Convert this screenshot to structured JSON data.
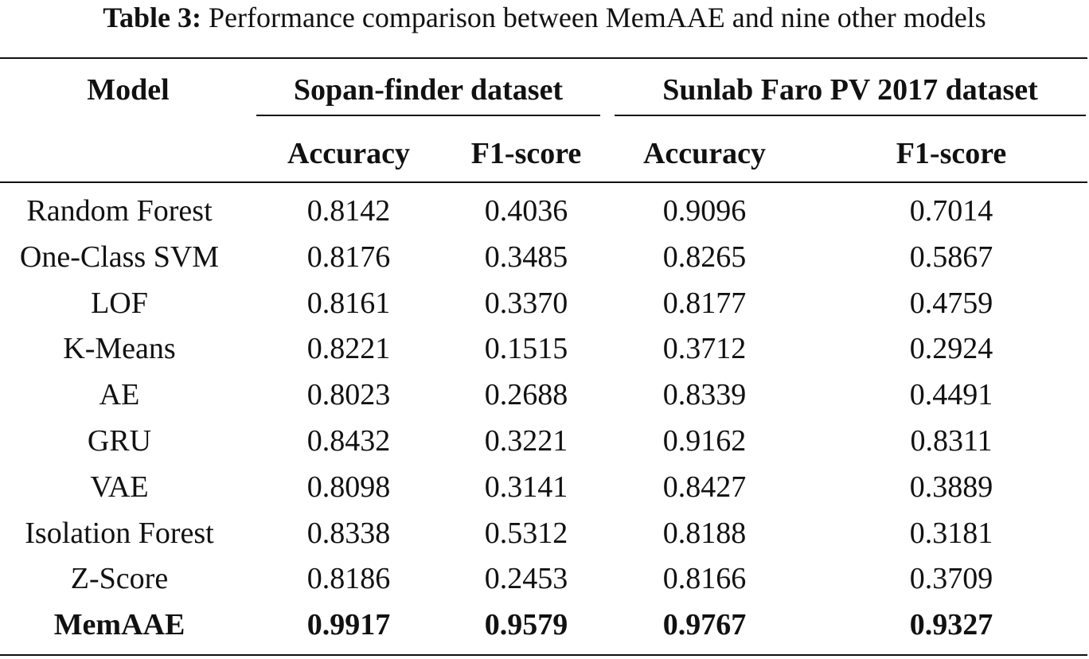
{
  "caption": {
    "label": "Table 3:",
    "text": " Performance comparison between MemAAE and nine other models"
  },
  "header": {
    "model": "Model",
    "group1": "Sopan-finder dataset",
    "group2": "Sunlab Faro PV 2017 dataset",
    "g1_acc": "Accuracy",
    "g1_f1": "F1-score",
    "g2_acc": "Accuracy",
    "g2_f1": "F1-score"
  },
  "rows": [
    {
      "model": "Random Forest",
      "s_acc": "0.8142",
      "s_f1": "0.4036",
      "p_acc": "0.9096",
      "p_f1": "0.7014"
    },
    {
      "model": "One-Class SVM",
      "s_acc": "0.8176",
      "s_f1": "0.3485",
      "p_acc": "0.8265",
      "p_f1": "0.5867"
    },
    {
      "model": "LOF",
      "s_acc": "0.8161",
      "s_f1": "0.3370",
      "p_acc": "0.8177",
      "p_f1": "0.4759"
    },
    {
      "model": "K-Means",
      "s_acc": "0.8221",
      "s_f1": "0.1515",
      "p_acc": "0.3712",
      "p_f1": "0.2924"
    },
    {
      "model": "AE",
      "s_acc": "0.8023",
      "s_f1": "0.2688",
      "p_acc": "0.8339",
      "p_f1": "0.4491"
    },
    {
      "model": "GRU",
      "s_acc": "0.8432",
      "s_f1": "0.3221",
      "p_acc": "0.9162",
      "p_f1": "0.8311"
    },
    {
      "model": "VAE",
      "s_acc": "0.8098",
      "s_f1": "0.3141",
      "p_acc": "0.8427",
      "p_f1": "0.3889"
    },
    {
      "model": "Isolation Forest",
      "s_acc": "0.8338",
      "s_f1": "0.5312",
      "p_acc": "0.8188",
      "p_f1": "0.3181"
    },
    {
      "model": "Z-Score",
      "s_acc": "0.8186",
      "s_f1": "0.2453",
      "p_acc": "0.8166",
      "p_f1": "0.3709"
    },
    {
      "model": "MemAAE",
      "s_acc": "0.9917",
      "s_f1": "0.9579",
      "p_acc": "0.9767",
      "p_f1": "0.9327"
    }
  ]
}
